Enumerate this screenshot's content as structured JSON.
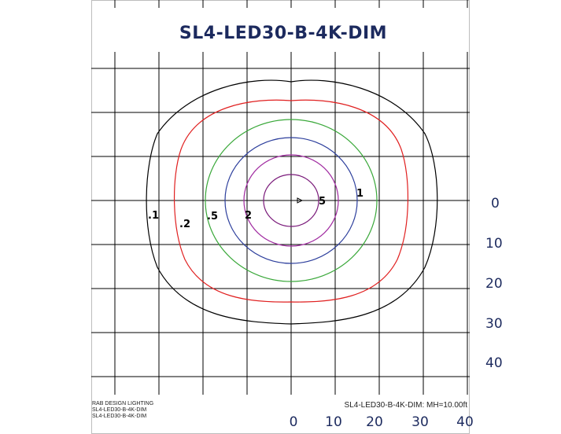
{
  "title": "SL4-LED30-B-4K-DIM",
  "y_axis_labels": [
    "0",
    "10",
    "20",
    "30",
    "40"
  ],
  "x_axis_labels": [
    "0",
    "10",
    "20",
    "30",
    "40"
  ],
  "contour_labels": [
    ".1",
    ".2",
    ".5",
    "2",
    "5",
    "1"
  ],
  "contours": [
    {
      "value": ".1",
      "color": "#000000"
    },
    {
      "value": ".2",
      "color": "#e02020"
    },
    {
      "value": ".5",
      "color": "#3aa83a"
    },
    {
      "value": "1",
      "color": "#2c3e9c"
    },
    {
      "value": "2",
      "color": "#a02aa0"
    },
    {
      "value": "5",
      "color": "#7a1a7a"
    }
  ],
  "footer_left": [
    "RAB DESIGN LIGHTING",
    "SL4-LED30-B-4K-DIM",
    "SL4-LED30-B-4K-DIM"
  ],
  "footer_right": "SL4-LED30-B-4K-DIM: MH=10.00ft"
}
